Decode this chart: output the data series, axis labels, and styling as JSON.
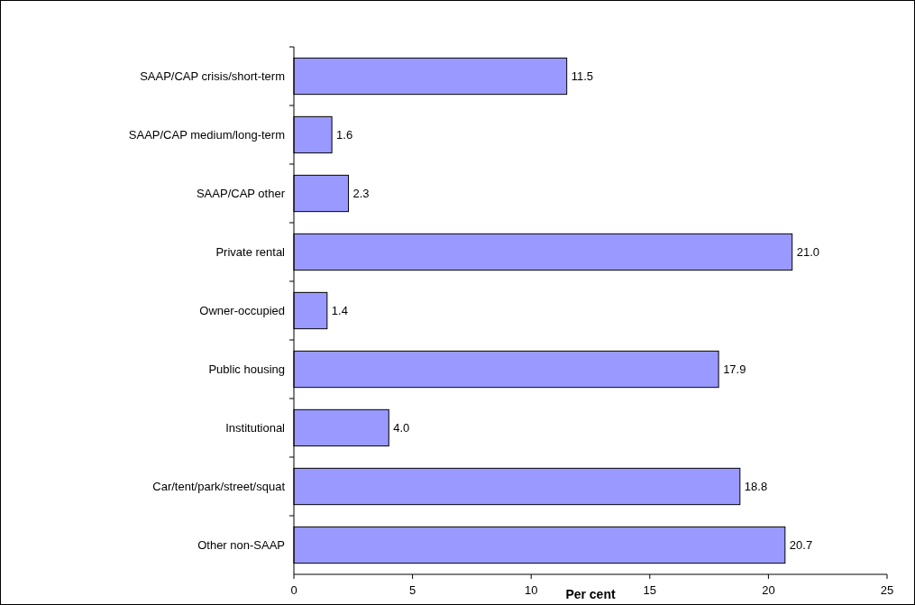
{
  "chart_data": {
    "type": "bar",
    "orientation": "horizontal",
    "xlabel": "Per cent",
    "categories": [
      "SAAP/CAP crisis/short-term",
      "SAAP/CAP medium/long-term",
      "SAAP/CAP other",
      "Private rental",
      "Owner-occupied",
      "Public housing",
      "Institutional",
      "Car/tent/park/street/squat",
      "Other non-SAAP"
    ],
    "values": [
      11.5,
      1.6,
      2.3,
      21.0,
      1.4,
      17.9,
      4.0,
      18.8,
      20.7
    ],
    "value_labels": [
      "11.5",
      "1.6",
      "2.3",
      "21.0",
      "1.4",
      "17.9",
      "4.0",
      "18.8",
      "20.7"
    ],
    "color": "#9999ff",
    "xlim": [
      0,
      25
    ],
    "xticks": [
      0,
      5,
      10,
      15,
      20,
      25
    ],
    "grid": false
  }
}
